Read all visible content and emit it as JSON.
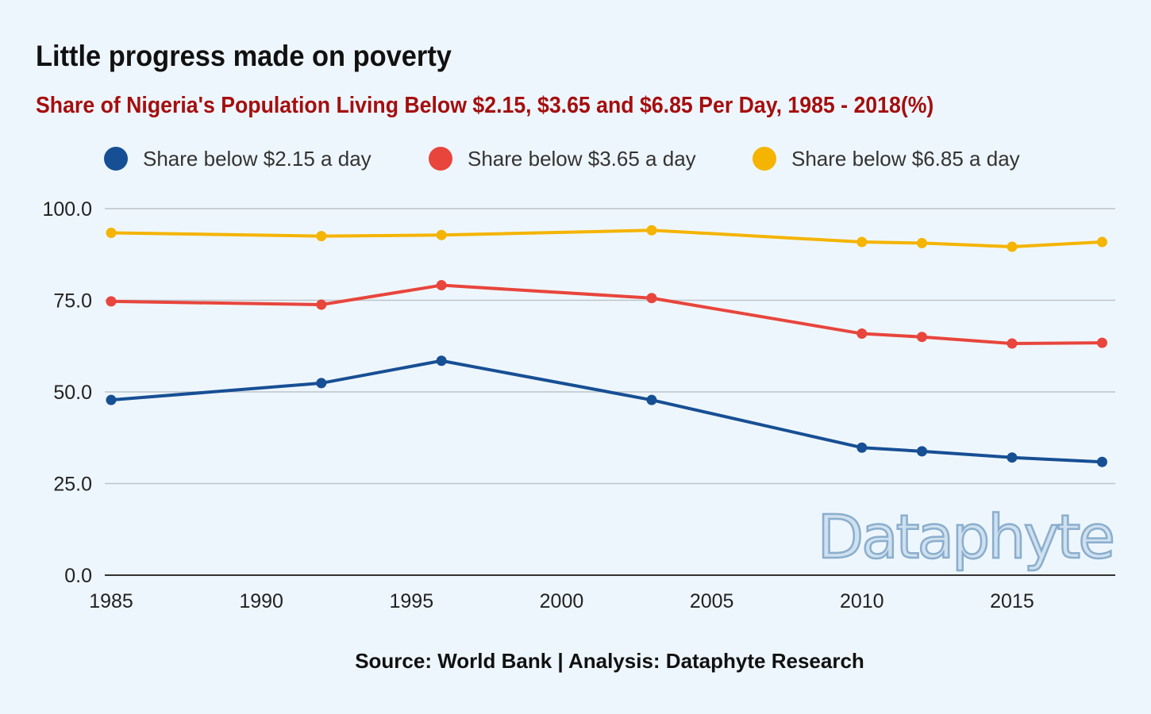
{
  "title": "Little progress made on poverty",
  "subtitle": "Share of Nigeria's Population Living Below $2.15, $3.65 and $6.85 Per Day, 1985 - 2018(%)",
  "source": "Source: World Bank | Analysis: Dataphyte Research",
  "watermark": "Dataphyte",
  "chart_data": {
    "type": "line",
    "title": "Little progress made on poverty",
    "subtitle": "Share of Nigeria's Population Living Below $2.15, $3.65 and $6.85 Per Day, 1985 - 2018(%)",
    "x": [
      1985,
      1992,
      1996,
      2003,
      2010,
      2012,
      2015,
      2018
    ],
    "xlim": [
      1985,
      2018.2
    ],
    "xticks": [
      "1985",
      "1990",
      "1995",
      "2000",
      "2005",
      "2010",
      "2015"
    ],
    "ylim": [
      0,
      100
    ],
    "yticks": [
      "0.0",
      "25.0",
      "50.0",
      "75.0",
      "100.0"
    ],
    "grid": true,
    "legend_position": "top",
    "series": [
      {
        "name": "Share below $2.15 a day",
        "color": "#174f94",
        "values": [
          47.8,
          52.4,
          58.5,
          47.8,
          34.8,
          33.8,
          32.1,
          30.9
        ]
      },
      {
        "name": "Share below $3.65 a day",
        "color": "#e8453c",
        "values": [
          74.7,
          73.8,
          79.1,
          75.6,
          65.9,
          65.0,
          63.2,
          63.4
        ]
      },
      {
        "name": "Share below $6.85 a day",
        "color": "#f4b400",
        "values": [
          93.4,
          92.5,
          92.8,
          94.1,
          90.9,
          90.6,
          89.6,
          90.9
        ]
      }
    ]
  }
}
